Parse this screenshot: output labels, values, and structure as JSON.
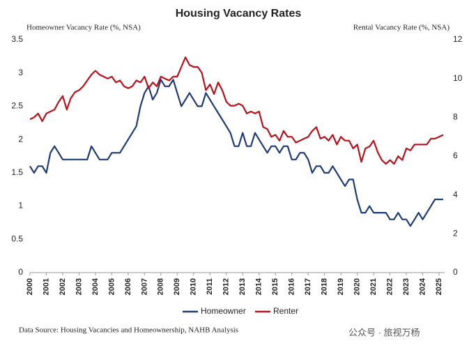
{
  "chart_data": {
    "type": "line",
    "title": "Housing Vacancy Rates",
    "y_label": "Homeowner Vacancy Rate (%, NSA)",
    "y2_label": "Rental Vacancy Rate (%, NSA)",
    "source": "Data Source: Housing Vacancies and Homeownership, NAHB Analysis",
    "watermark": "公众号 · 旅视万杨",
    "categories": [
      "2000",
      null,
      null,
      null,
      "2001",
      null,
      null,
      null,
      "2002",
      null,
      null,
      null,
      "2003",
      null,
      null,
      null,
      "2004",
      null,
      null,
      null,
      "2005",
      null,
      null,
      null,
      "2006",
      null,
      null,
      null,
      "2007",
      null,
      null,
      null,
      "2008",
      null,
      null,
      null,
      "2009",
      null,
      null,
      null,
      "2010",
      null,
      null,
      null,
      "2011",
      null,
      null,
      null,
      "2012",
      null,
      null,
      null,
      "2013",
      null,
      null,
      null,
      "2014",
      null,
      null,
      null,
      "2015",
      null,
      null,
      null,
      "2016",
      null,
      null,
      null,
      "2017",
      null,
      null,
      null,
      "2018",
      null,
      null,
      null,
      "2019",
      null,
      null,
      null,
      "2020",
      null,
      null,
      null,
      "2021",
      null,
      null,
      null,
      "2022",
      null,
      null,
      null,
      "2023",
      null,
      null,
      null,
      "2024",
      null,
      null,
      null,
      "2025",
      null
    ],
    "series": [
      {
        "name": "Homeowner",
        "color": "#1f3b73",
        "values": [
          1.6,
          1.5,
          1.6,
          1.6,
          1.5,
          1.8,
          1.9,
          1.8,
          1.7,
          1.7,
          1.7,
          1.7,
          1.7,
          1.7,
          1.7,
          1.9,
          1.8,
          1.7,
          1.7,
          1.7,
          1.8,
          1.8,
          1.8,
          1.9,
          2.0,
          2.1,
          2.2,
          2.5,
          2.7,
          2.8,
          2.6,
          2.7,
          2.9,
          2.8,
          2.8,
          2.9,
          2.7,
          2.5,
          2.6,
          2.7,
          2.6,
          2.5,
          2.5,
          2.7,
          2.6,
          2.5,
          2.4,
          2.3,
          2.2,
          2.1,
          1.9,
          1.9,
          2.1,
          1.9,
          1.9,
          2.1,
          2.0,
          1.9,
          1.8,
          1.9,
          1.9,
          1.8,
          1.9,
          1.9,
          1.7,
          1.7,
          1.8,
          1.8,
          1.7,
          1.5,
          1.6,
          1.6,
          1.5,
          1.5,
          1.6,
          1.5,
          1.4,
          1.3,
          1.4,
          1.4,
          1.1,
          0.9,
          0.9,
          1.0,
          0.9,
          0.9,
          0.9,
          0.9,
          0.8,
          0.8,
          0.9,
          0.8,
          0.8,
          0.7,
          0.8,
          0.9,
          0.8,
          0.9,
          1.0,
          1.1,
          1.1,
          1.1
        ]
      },
      {
        "name": "Renter",
        "color": "#b5121b",
        "axis": "y2",
        "values": [
          7.9,
          8.0,
          8.2,
          7.8,
          8.2,
          8.3,
          8.4,
          8.8,
          9.1,
          8.4,
          9.0,
          9.3,
          9.4,
          9.6,
          9.9,
          10.2,
          10.4,
          10.2,
          10.1,
          10.0,
          10.1,
          9.8,
          9.9,
          9.6,
          9.5,
          9.6,
          9.9,
          9.8,
          10.1,
          9.5,
          9.8,
          9.6,
          10.1,
          10.0,
          9.9,
          10.1,
          10.1,
          10.6,
          11.1,
          10.7,
          10.6,
          10.6,
          10.3,
          9.4,
          9.7,
          9.2,
          9.8,
          9.4,
          8.8,
          8.6,
          8.6,
          8.7,
          8.6,
          8.2,
          8.3,
          8.2,
          8.3,
          7.5,
          7.4,
          7.0,
          7.1,
          6.8,
          7.3,
          7.0,
          7.0,
          6.7,
          6.8,
          6.9,
          7.0,
          7.3,
          7.5,
          6.9,
          7.0,
          6.8,
          7.1,
          6.6,
          7.0,
          6.8,
          6.8,
          6.4,
          6.6,
          5.7,
          6.4,
          6.5,
          6.8,
          6.2,
          5.8,
          5.6,
          5.8,
          5.6,
          6.0,
          5.8,
          6.4,
          6.3,
          6.6,
          6.6,
          6.6,
          6.6,
          6.9,
          6.9,
          7.0,
          7.1
        ]
      }
    ],
    "ylim": [
      0,
      3.5
    ],
    "yticks": [
      0,
      0.5,
      1,
      1.5,
      2,
      2.5,
      3,
      3.5
    ],
    "y2lim": [
      0,
      12
    ],
    "y2ticks": [
      0,
      2,
      4,
      6,
      8,
      10,
      12
    ],
    "legend": "bottom",
    "grid": false
  }
}
